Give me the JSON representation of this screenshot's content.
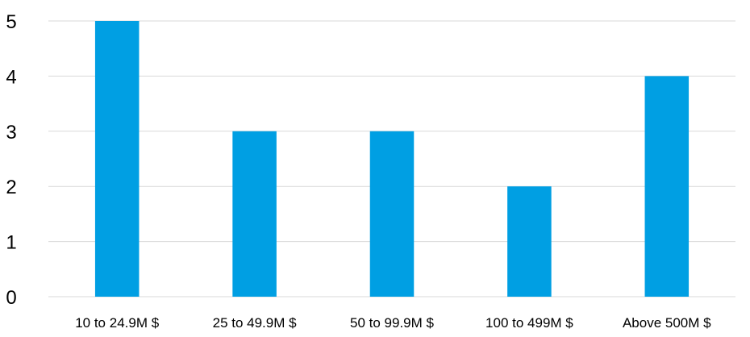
{
  "chart_data": {
    "type": "bar",
    "categories": [
      "10 to 24.9M $",
      "25 to 49.9M $",
      "50 to 99.9M $",
      "100 to 499M $",
      "Above 500M $"
    ],
    "values": [
      5,
      3,
      3,
      2,
      4
    ],
    "title": "",
    "xlabel": "",
    "ylabel": "",
    "ylim": [
      0,
      5
    ],
    "yticks": [
      0,
      1,
      2,
      3,
      4,
      5
    ],
    "bar_color": "#009fe3",
    "grid": true,
    "legend": "none"
  }
}
